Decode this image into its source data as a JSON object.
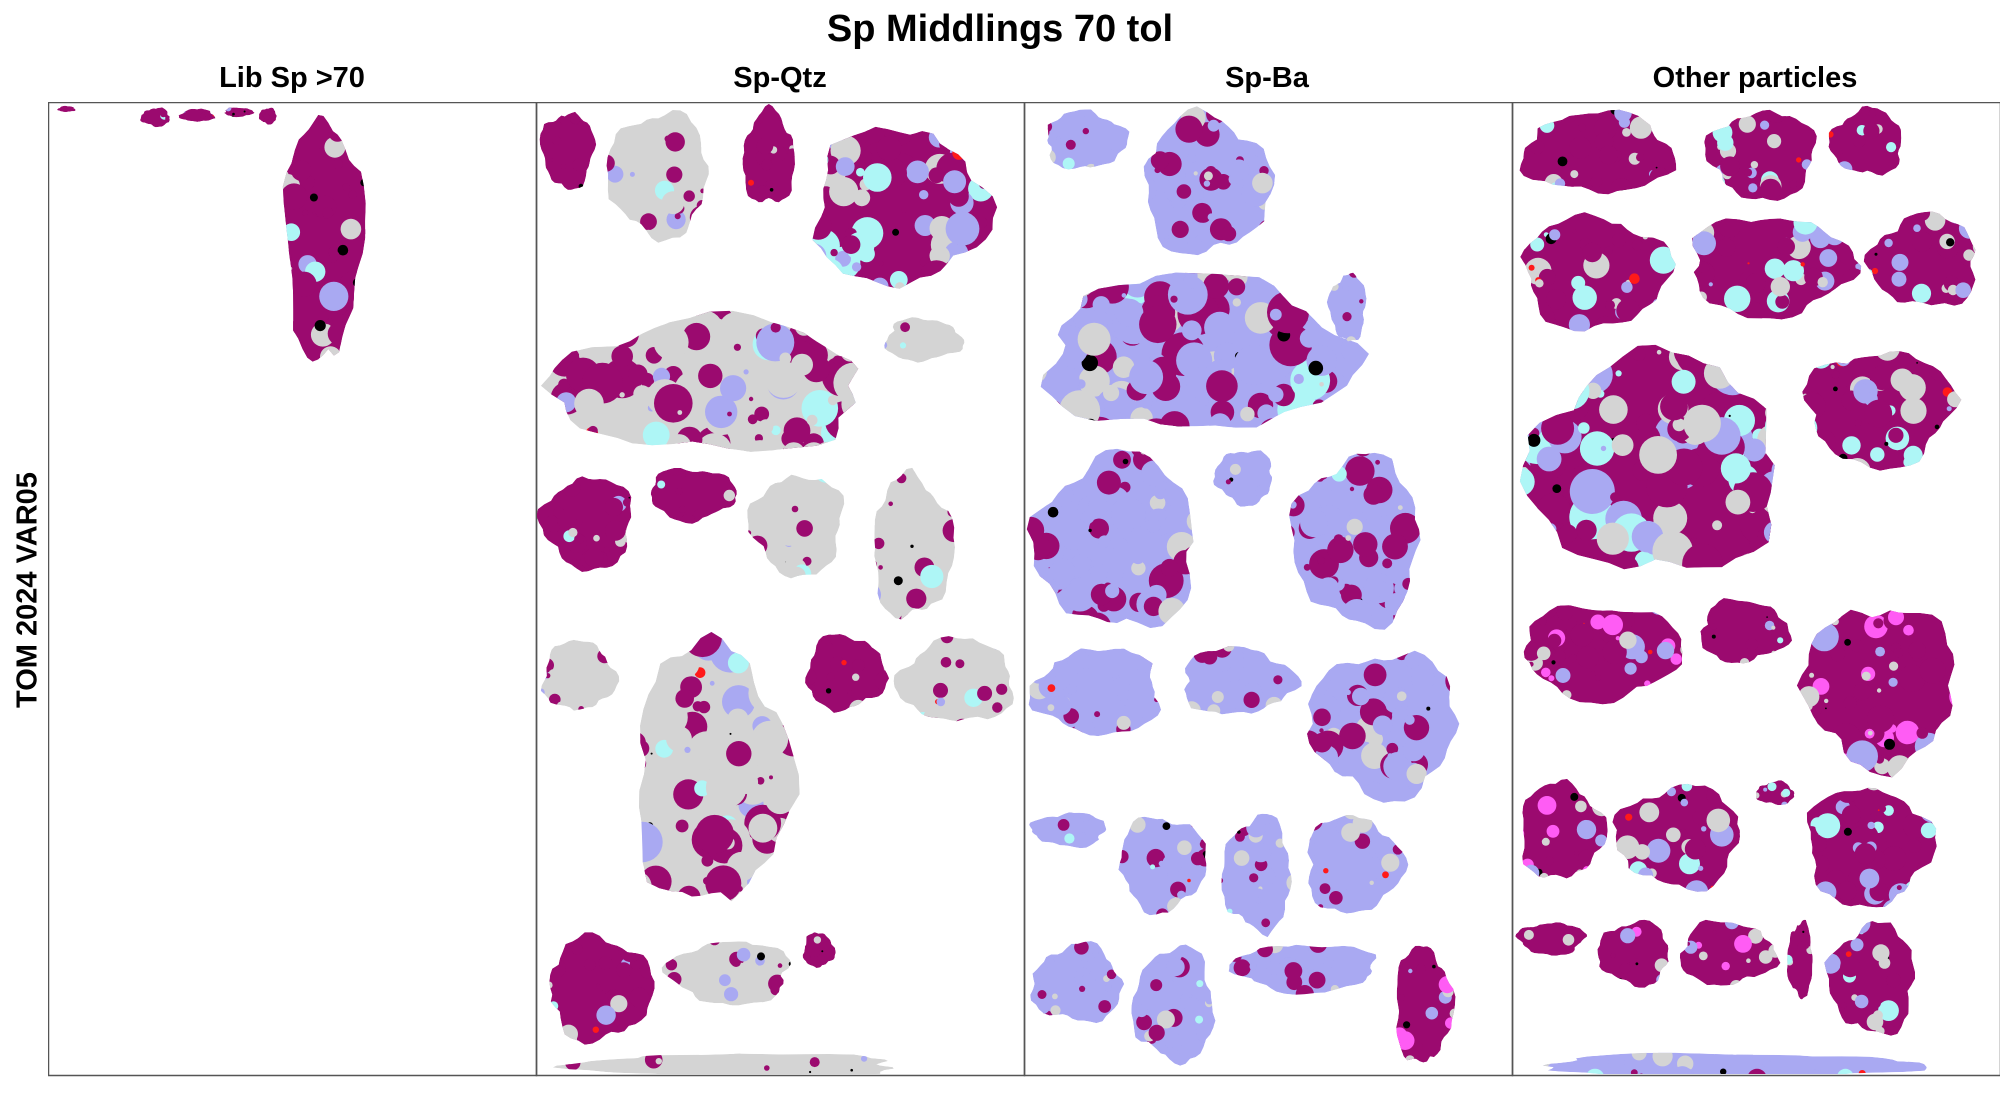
{
  "title": "Sp Middlings 70 tol",
  "columns": [
    "Lib Sp >70",
    "Sp-Qtz",
    "Sp-Ba",
    "Other particles"
  ],
  "row_label": "TOM 2024 VAR05",
  "colors": {
    "sphalerite": "#9b0a6f",
    "quartz": "#d4d4d4",
    "barite": "#a9a9f2",
    "cyan_phase": "#aef6f6",
    "pink_phase": "#ff5cf4",
    "black_phase": "#000000",
    "red_phase": "#ff1a1a",
    "border": "#555555"
  }
}
